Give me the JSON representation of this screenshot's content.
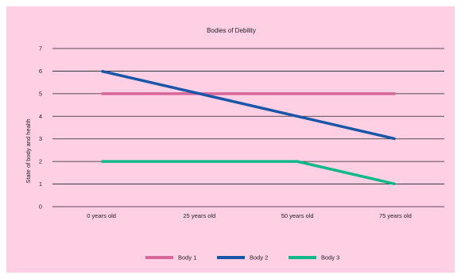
{
  "chart_data": {
    "type": "line",
    "title": "Bodies of Debility",
    "xlabel": "",
    "ylabel": "State of body and health",
    "categories": [
      "0 years old",
      "25 years old",
      "50 years old",
      "75 years old"
    ],
    "ylim": [
      0,
      7
    ],
    "yticks": [
      "0",
      "1",
      "2",
      "3",
      "4",
      "5",
      "6",
      "7"
    ],
    "grid": true,
    "legend": "bottom",
    "series": [
      {
        "name": "Body 1",
        "color": "#d6679a",
        "values": [
          5,
          5,
          5,
          5
        ]
      },
      {
        "name": "Body 2",
        "color": "#1a56a8",
        "values": [
          6,
          5,
          4,
          3
        ]
      },
      {
        "name": "Body 3",
        "color": "#10b88a",
        "values": [
          2,
          2,
          2,
          1
        ]
      }
    ]
  },
  "colors": {
    "background": "#ffd0e4",
    "gridline": "#222222"
  }
}
